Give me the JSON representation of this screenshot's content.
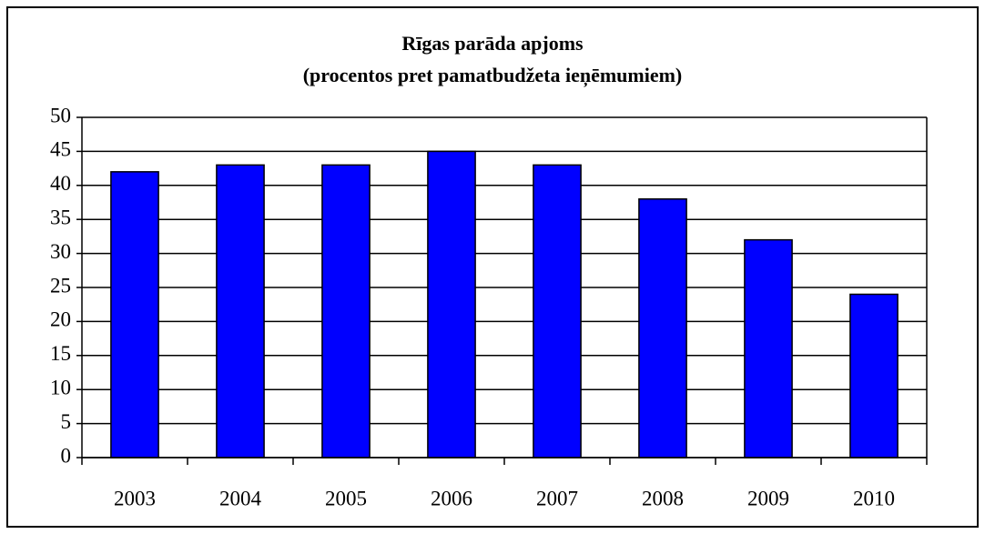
{
  "chart_data": {
    "type": "bar",
    "title": "Rīgas parāda apjoms",
    "subtitle": "(procentos pret pamatbudžeta ieņēmumiem)",
    "categories": [
      "2003",
      "2004",
      "2005",
      "2006",
      "2007",
      "2008",
      "2009",
      "2010"
    ],
    "values": [
      42,
      43,
      43,
      45,
      43,
      38,
      32,
      24
    ],
    "color": "#0000ff",
    "ylim": [
      0,
      50
    ],
    "yticks": [
      0,
      5,
      10,
      15,
      20,
      25,
      30,
      35,
      40,
      45,
      50
    ],
    "grid": true
  }
}
